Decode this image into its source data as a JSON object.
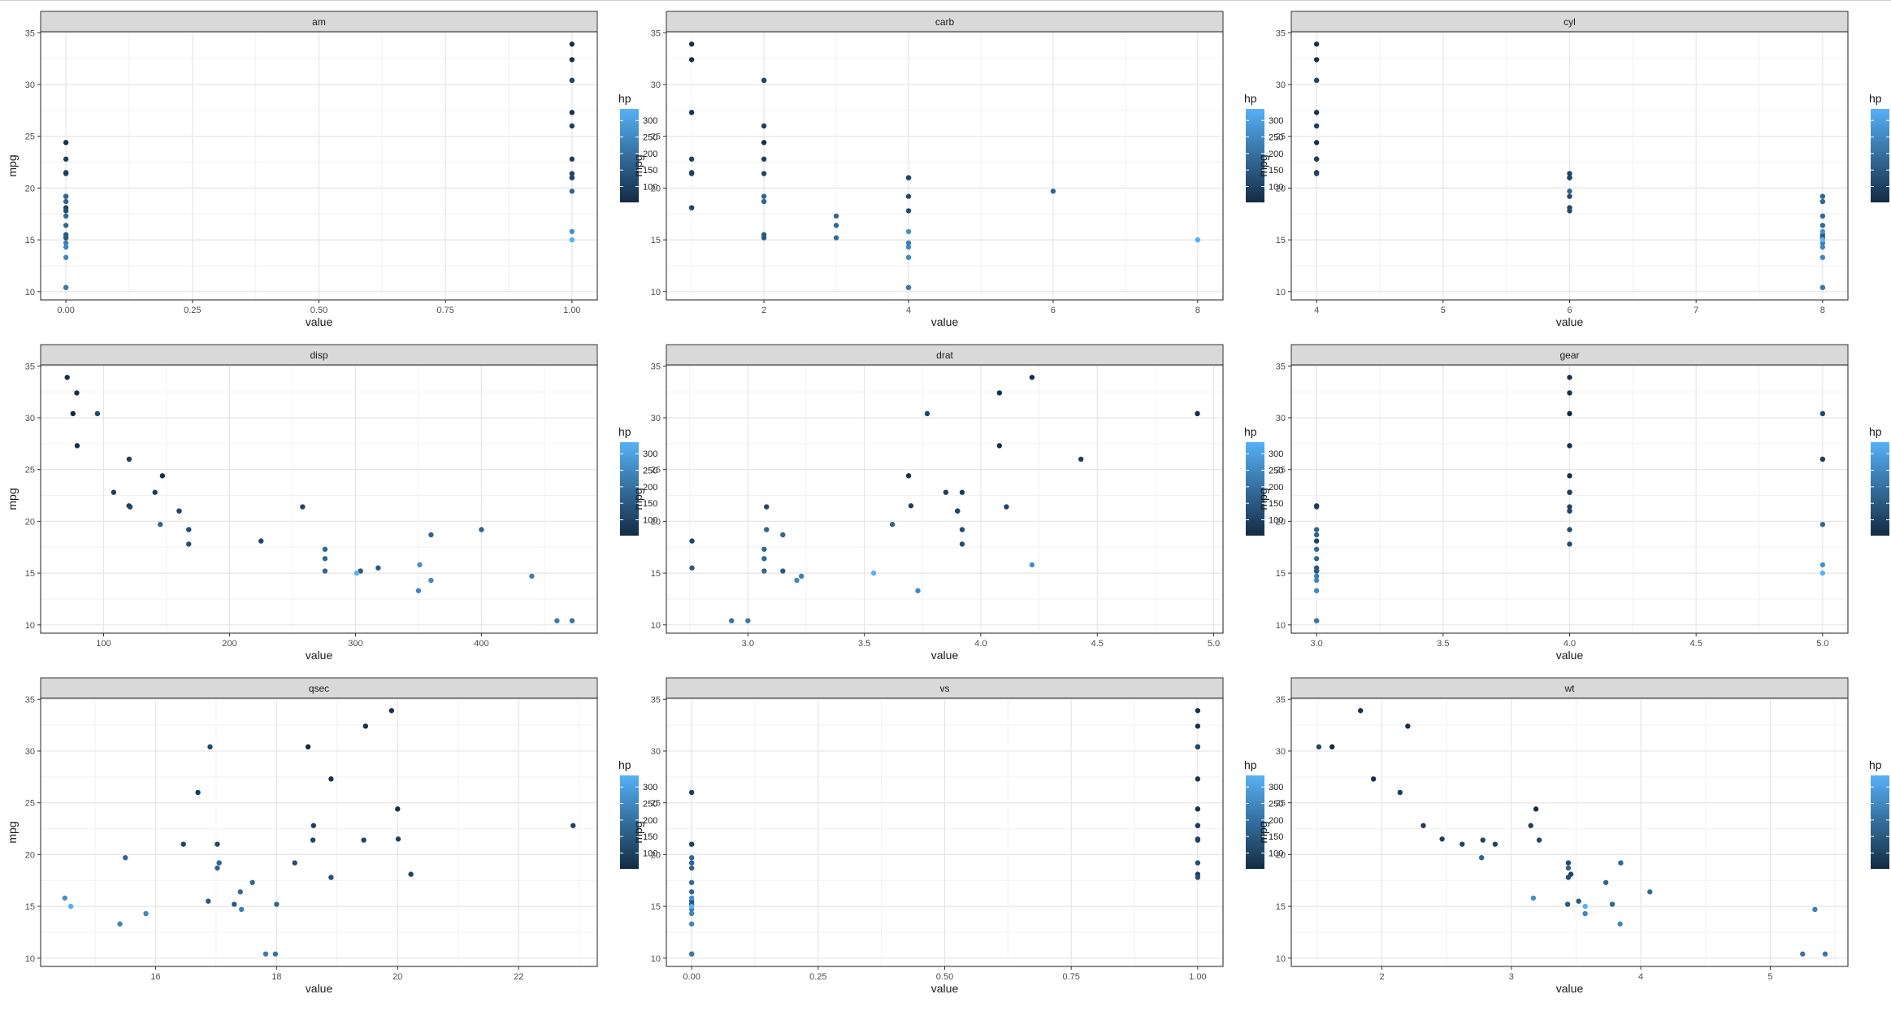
{
  "chart_data": {
    "type": "scatter",
    "ylabel": "mpg",
    "xlabel": "value",
    "legend": {
      "title": "hp",
      "ticks": [
        300,
        250,
        200,
        150,
        100
      ],
      "range": [
        52,
        335
      ],
      "low_color": "#132B43",
      "high_color": "#56B1F7",
      "placement": "right of each panel"
    },
    "y_ticks": [
      10,
      15,
      20,
      25,
      30,
      35
    ],
    "ylim": [
      9.2,
      35.1
    ],
    "grid": true,
    "hp": [
      110,
      110,
      93,
      110,
      175,
      105,
      245,
      62,
      95,
      123,
      123,
      180,
      180,
      180,
      205,
      215,
      230,
      66,
      52,
      65,
      97,
      150,
      150,
      245,
      175,
      66,
      91,
      113,
      264,
      175,
      335,
      109
    ],
    "mpg": [
      21.0,
      21.0,
      22.8,
      21.4,
      18.7,
      18.1,
      14.3,
      24.4,
      22.8,
      19.2,
      17.8,
      16.4,
      17.3,
      15.2,
      10.4,
      10.4,
      14.7,
      32.4,
      30.4,
      33.9,
      21.5,
      15.5,
      15.2,
      13.3,
      19.2,
      27.3,
      26.0,
      30.4,
      15.8,
      19.7,
      15.0,
      21.4
    ],
    "panels": [
      {
        "name": "am",
        "xlim": [
          -0.05,
          1.05
        ],
        "x_ticks": [
          0,
          0.25,
          0.5,
          0.75,
          1
        ],
        "x_tick_labels": [
          "0.00",
          "0.25",
          "0.50",
          "0.75",
          "1.00"
        ],
        "x": [
          1,
          1,
          1,
          0,
          0,
          0,
          0,
          0,
          0,
          0,
          0,
          0,
          0,
          0,
          0,
          0,
          0,
          1,
          1,
          1,
          0,
          0,
          0,
          0,
          0,
          1,
          1,
          1,
          1,
          1,
          1,
          1
        ]
      },
      {
        "name": "carb",
        "xlim": [
          0.65,
          8.35
        ],
        "x_ticks": [
          2,
          4,
          6,
          8
        ],
        "x_tick_labels": [
          "2",
          "4",
          "6",
          "8"
        ],
        "x": [
          4,
          4,
          1,
          1,
          2,
          1,
          4,
          2,
          2,
          4,
          4,
          3,
          3,
          3,
          4,
          4,
          4,
          1,
          2,
          1,
          1,
          2,
          2,
          4,
          2,
          1,
          2,
          2,
          4,
          6,
          8,
          2
        ]
      },
      {
        "name": "cyl",
        "xlim": [
          3.8,
          8.2
        ],
        "x_ticks": [
          4,
          5,
          6,
          7,
          8
        ],
        "x_tick_labels": [
          "4",
          "5",
          "6",
          "7",
          "8"
        ],
        "x": [
          6,
          6,
          4,
          6,
          8,
          6,
          8,
          4,
          4,
          6,
          6,
          8,
          8,
          8,
          8,
          8,
          8,
          4,
          4,
          4,
          4,
          8,
          8,
          8,
          8,
          4,
          4,
          4,
          8,
          6,
          8,
          4
        ]
      },
      {
        "name": "disp",
        "xlim": [
          50,
          492
        ],
        "x_ticks": [
          100,
          200,
          300,
          400
        ],
        "x_tick_labels": [
          "100",
          "200",
          "300",
          "400"
        ],
        "x": [
          160,
          160,
          108,
          258,
          360,
          225,
          360,
          146.7,
          140.8,
          167.6,
          167.6,
          275.8,
          275.8,
          275.8,
          472,
          460,
          440,
          78.7,
          75.7,
          71.1,
          120.1,
          318,
          304,
          350,
          400,
          79,
          120.3,
          95.1,
          351,
          145,
          301,
          121
        ]
      },
      {
        "name": "drat",
        "xlim": [
          2.65,
          5.04
        ],
        "x_ticks": [
          3.0,
          3.5,
          4.0,
          4.5,
          5.0
        ],
        "x_tick_labels": [
          "3.0",
          "3.5",
          "4.0",
          "4.5",
          "5.0"
        ],
        "x": [
          3.9,
          3.9,
          3.85,
          3.08,
          3.15,
          2.76,
          3.21,
          3.69,
          3.92,
          3.92,
          3.92,
          3.07,
          3.07,
          3.07,
          2.93,
          3.0,
          3.23,
          4.08,
          4.93,
          4.22,
          3.7,
          2.76,
          3.15,
          3.73,
          3.08,
          4.08,
          4.43,
          3.77,
          4.22,
          3.62,
          3.54,
          4.11
        ]
      },
      {
        "name": "gear",
        "xlim": [
          2.9,
          5.1
        ],
        "x_ticks": [
          3.0,
          3.5,
          4.0,
          4.5,
          5.0
        ],
        "x_tick_labels": [
          "3.0",
          "3.5",
          "4.0",
          "4.5",
          "5.0"
        ],
        "x": [
          4,
          4,
          4,
          3,
          3,
          3,
          3,
          4,
          4,
          4,
          4,
          3,
          3,
          3,
          3,
          3,
          3,
          4,
          4,
          4,
          3,
          3,
          3,
          3,
          3,
          4,
          5,
          5,
          5,
          5,
          5,
          4
        ]
      },
      {
        "name": "qsec",
        "xlim": [
          14.1,
          23.3
        ],
        "x_ticks": [
          16,
          18,
          20,
          22
        ],
        "x_tick_labels": [
          "16",
          "18",
          "20",
          "22"
        ],
        "x": [
          16.46,
          17.02,
          18.61,
          19.44,
          17.02,
          20.22,
          15.84,
          20.0,
          22.9,
          18.3,
          18.9,
          17.4,
          17.6,
          18.0,
          17.98,
          17.82,
          17.42,
          19.47,
          18.52,
          19.9,
          20.01,
          16.87,
          17.3,
          15.41,
          17.05,
          18.9,
          16.7,
          16.9,
          14.5,
          15.5,
          14.6,
          18.6
        ]
      },
      {
        "name": "vs",
        "xlim": [
          -0.05,
          1.05
        ],
        "x_ticks": [
          0,
          0.25,
          0.5,
          0.75,
          1
        ],
        "x_tick_labels": [
          "0.00",
          "0.25",
          "0.50",
          "0.75",
          "1.00"
        ],
        "x": [
          0,
          0,
          1,
          1,
          0,
          1,
          0,
          1,
          1,
          1,
          1,
          0,
          0,
          0,
          0,
          0,
          0,
          1,
          1,
          1,
          1,
          0,
          0,
          0,
          0,
          1,
          0,
          1,
          0,
          0,
          0,
          1
        ]
      },
      {
        "name": "wt",
        "xlim": [
          1.3,
          5.6
        ],
        "x_ticks": [
          2,
          3,
          4,
          5
        ],
        "x_tick_labels": [
          "2",
          "3",
          "4",
          "5"
        ],
        "x": [
          2.62,
          2.875,
          2.32,
          3.215,
          3.44,
          3.46,
          3.57,
          3.19,
          3.15,
          3.44,
          3.44,
          4.07,
          3.73,
          3.78,
          5.25,
          5.424,
          5.345,
          2.2,
          1.615,
          1.835,
          2.465,
          3.52,
          3.435,
          3.84,
          3.845,
          1.935,
          2.14,
          1.513,
          3.17,
          2.77,
          3.57,
          2.78
        ]
      }
    ]
  }
}
